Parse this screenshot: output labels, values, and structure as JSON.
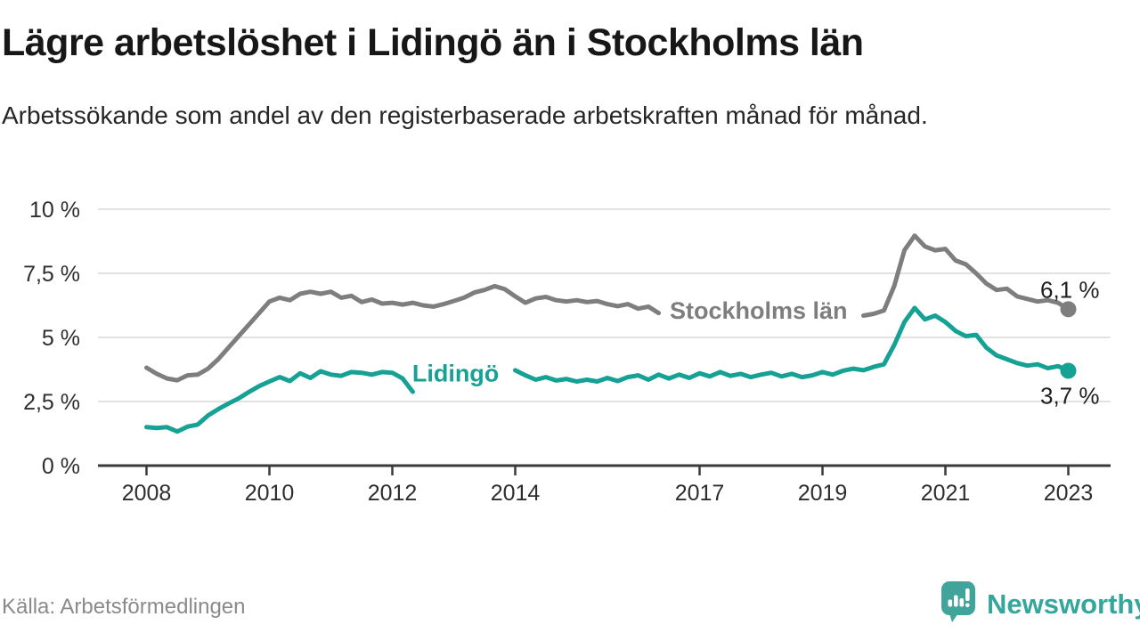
{
  "title": "Lägre arbetslöshet i Lidingö än i Stockholms län",
  "subtitle": "Arbetssökande som andel av den registerbaserade arbetskraften månad för månad.",
  "source": "Källa: Arbetsförmedlingen",
  "logo": {
    "text": "Newsworthy",
    "color": "#35a69b",
    "icon": "newsworthy-speech-bubble-bar-chart-icon"
  },
  "colors": {
    "background": "#ffffff",
    "grid": "#d9d9d9",
    "axis": "#3a3a3a",
    "tick_label": "#2e2e2e",
    "end_label": "#1f1f1f",
    "title": "#171717",
    "subtitle": "#262626",
    "source": "#8a8a8a"
  },
  "chart_data": {
    "type": "line",
    "title": "Lägre arbetslöshet i Lidingö än i Stockholms län",
    "xlabel": "",
    "ylabel": "",
    "unit": "%",
    "grid": true,
    "legend_position": "inline-on-line",
    "ylim": [
      0,
      10
    ],
    "xlim": [
      2008,
      2023
    ],
    "x_start": 2008.0,
    "x_step": 0.1666667,
    "x_ticks": [
      {
        "year": 2008,
        "label": "2008"
      },
      {
        "year": 2010,
        "label": "2010"
      },
      {
        "year": 2012,
        "label": "2012"
      },
      {
        "year": 2014,
        "label": "2014"
      },
      {
        "year": 2017,
        "label": "2017"
      },
      {
        "year": 2019,
        "label": "2019"
      },
      {
        "year": 2021,
        "label": "2021"
      },
      {
        "year": 2023,
        "label": "2023"
      }
    ],
    "y_ticks": [
      {
        "value": 0,
        "label": "0 %"
      },
      {
        "value": 2.5,
        "label": "2,5 %"
      },
      {
        "value": 5,
        "label": "5 %"
      },
      {
        "value": 7.5,
        "label": "7,5 %"
      },
      {
        "value": 10,
        "label": "10 %"
      }
    ],
    "series": [
      {
        "name": "Stockholms län",
        "slug": "stockholms-lan",
        "color": "#7e7e7e",
        "end_label": "6,1 %",
        "end_label_side": "above",
        "inline_label": {
          "text": "Stockholms län",
          "year": 2017.96,
          "value": 6.08
        },
        "values": [
          3.82,
          3.58,
          3.4,
          3.33,
          3.52,
          3.55,
          3.78,
          4.15,
          4.6,
          5.05,
          5.5,
          5.95,
          6.4,
          6.55,
          6.45,
          6.7,
          6.78,
          6.7,
          6.78,
          6.55,
          6.62,
          6.38,
          6.48,
          6.32,
          6.35,
          6.28,
          6.35,
          6.25,
          6.2,
          6.3,
          6.42,
          6.55,
          6.75,
          6.85,
          7.0,
          6.88,
          6.6,
          6.35,
          6.52,
          6.58,
          6.45,
          6.4,
          6.45,
          6.38,
          6.42,
          6.3,
          6.22,
          6.3,
          6.12,
          6.2,
          5.95,
          null,
          null,
          null,
          null,
          null,
          null,
          null,
          null,
          null,
          null,
          null,
          null,
          null,
          null,
          null,
          null,
          null,
          null,
          null,
          5.85,
          5.92,
          6.05,
          7.0,
          8.4,
          8.97,
          8.55,
          8.4,
          8.45,
          8.0,
          7.85,
          7.5,
          7.1,
          6.85,
          6.9,
          6.6,
          6.5,
          6.4,
          6.45,
          6.35,
          6.1
        ]
      },
      {
        "name": "Lidingö",
        "slug": "lidingo",
        "color": "#16a195",
        "end_label": "3,7 %",
        "end_label_side": "below",
        "inline_label": {
          "text": "Lidingö",
          "year": 2013.03,
          "value": 3.62
        },
        "values": [
          1.5,
          1.47,
          1.5,
          1.33,
          1.52,
          1.6,
          1.95,
          2.2,
          2.42,
          2.62,
          2.87,
          3.1,
          3.28,
          3.45,
          3.3,
          3.6,
          3.42,
          3.68,
          3.55,
          3.5,
          3.65,
          3.62,
          3.55,
          3.65,
          3.62,
          3.4,
          2.88,
          null,
          null,
          null,
          null,
          null,
          null,
          null,
          null,
          null,
          3.72,
          3.52,
          3.35,
          3.45,
          3.32,
          3.38,
          3.28,
          3.35,
          3.28,
          3.42,
          3.3,
          3.45,
          3.52,
          3.35,
          3.55,
          3.4,
          3.55,
          3.42,
          3.6,
          3.48,
          3.65,
          3.5,
          3.58,
          3.45,
          3.55,
          3.62,
          3.48,
          3.58,
          3.45,
          3.52,
          3.65,
          3.55,
          3.7,
          3.78,
          3.72,
          3.85,
          3.95,
          4.7,
          5.6,
          6.15,
          5.7,
          5.85,
          5.6,
          5.25,
          5.05,
          5.1,
          4.6,
          4.3,
          4.15,
          4.0,
          3.9,
          3.95,
          3.8,
          3.88,
          3.7
        ]
      }
    ]
  }
}
